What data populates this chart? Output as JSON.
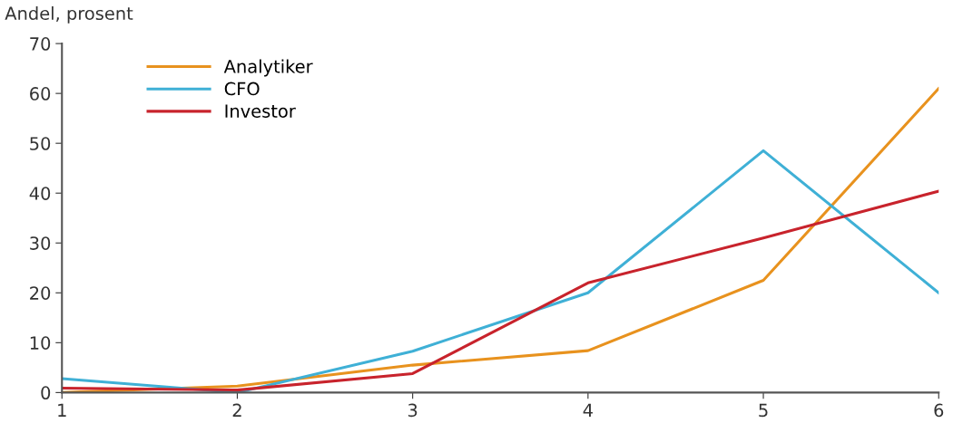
{
  "chart_data": {
    "type": "line",
    "ylabel": "Andel, prosent",
    "x": [
      1,
      2,
      3,
      4,
      5,
      6
    ],
    "series": [
      {
        "name": "Analytiker",
        "color": "#e8921e",
        "values": [
          0,
          1.3,
          5.5,
          8.4,
          22.5,
          61
        ]
      },
      {
        "name": "CFO",
        "color": "#3fb0d6",
        "values": [
          2.8,
          0,
          8.3,
          20,
          48.5,
          20
        ]
      },
      {
        "name": "Investor",
        "color": "#c8232c",
        "values": [
          0.9,
          0.5,
          3.8,
          22,
          31,
          40.4
        ]
      }
    ],
    "xlim": [
      1,
      6
    ],
    "xticks": [
      1,
      2,
      3,
      4,
      5,
      6
    ],
    "ylim": [
      0,
      70
    ],
    "yticks": [
      0,
      10,
      20,
      30,
      40,
      50,
      60,
      70
    ],
    "grid": false,
    "legend": "top left",
    "marker": "none",
    "line_style": "solid"
  }
}
